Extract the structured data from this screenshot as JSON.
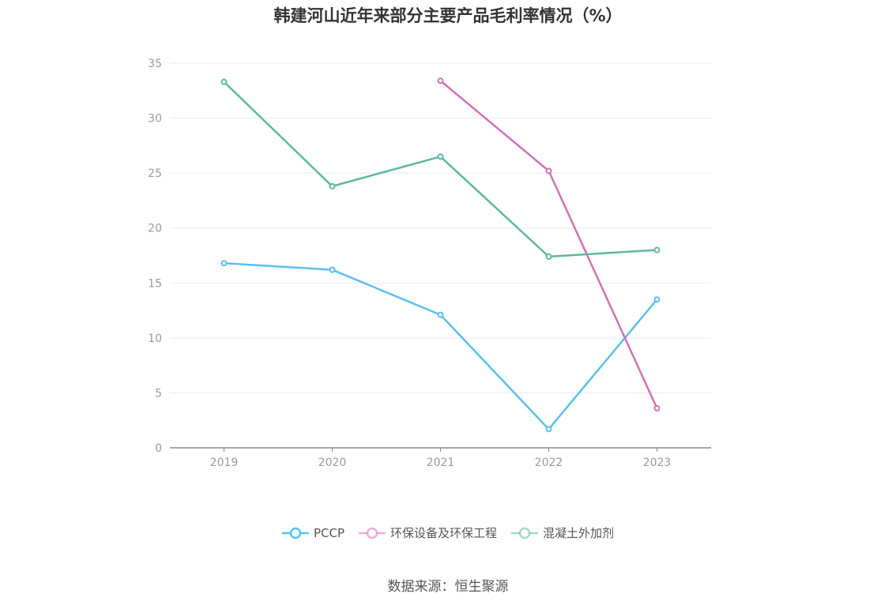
{
  "chart_data": {
    "type": "line",
    "title": "韩建河山近年来部分主要产品毛利率情况（%）",
    "categories": [
      "2019",
      "2020",
      "2021",
      "2022",
      "2023"
    ],
    "ylim": [
      0,
      35
    ],
    "yticks": [
      "0",
      "5",
      "10",
      "15",
      "20",
      "25",
      "30",
      "35"
    ],
    "grid": true,
    "legend_position": "bottom",
    "series": [
      {
        "name": "PCCP",
        "color": "#5bc0eb",
        "values": [
          16.8,
          16.2,
          12.1,
          1.7,
          13.5
        ]
      },
      {
        "name": "环保设备及环保工程",
        "color": "#d46fb5",
        "values": [
          null,
          null,
          33.4,
          25.2,
          3.6
        ]
      },
      {
        "name": "混凝土外加剂",
        "color": "#5cb8a0",
        "values": [
          33.3,
          23.8,
          26.5,
          17.4,
          18.0
        ]
      }
    ]
  },
  "source": "数据来源：恒生聚源"
}
